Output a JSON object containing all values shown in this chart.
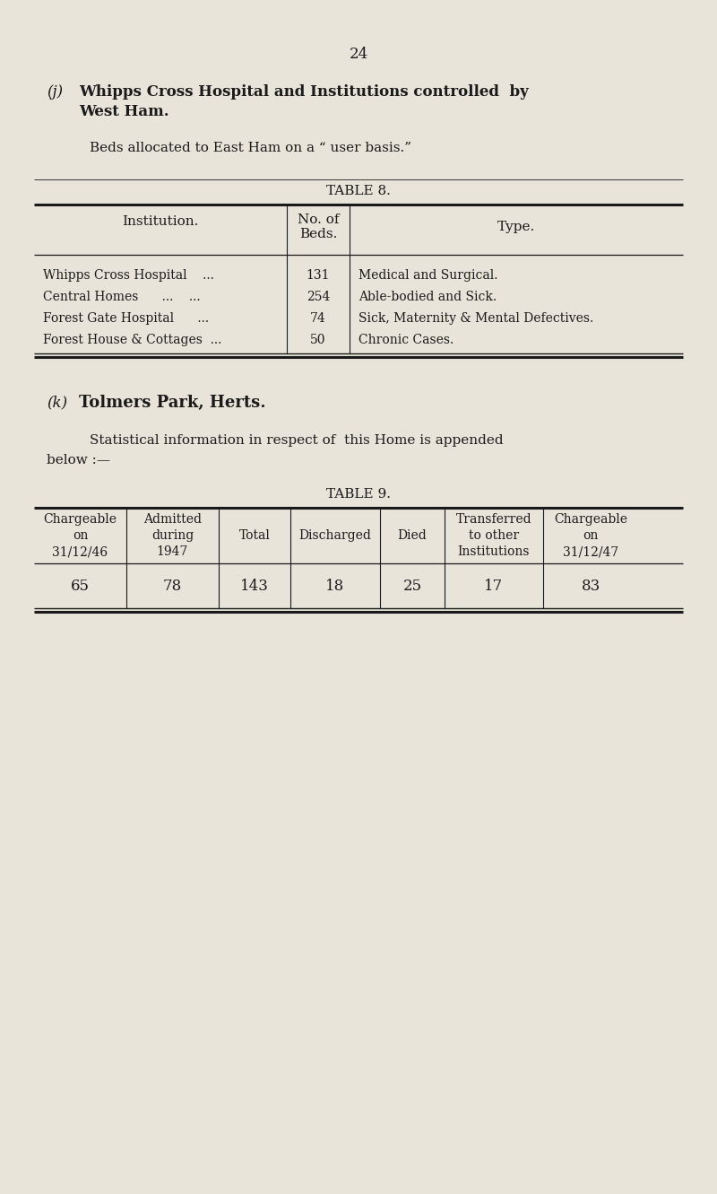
{
  "bg_color": "#e8e4da",
  "text_color": "#1a1a1a",
  "page_number": "24",
  "table8_title": "TABLE 8.",
  "table8_rows": [
    [
      "Whipps Cross Hospital    ...",
      "131",
      "Medical and Surgical."
    ],
    [
      "Central Homes      ...    ...",
      "254",
      "Able-bodied and Sick."
    ],
    [
      "Forest Gate Hospital      ...",
      "74",
      "Sick, Maternity & Mental Defectives."
    ],
    [
      "Forest House & Cottages  ...",
      "50",
      "Chronic Cases."
    ]
  ],
  "table9_title": "TABLE 9.",
  "table9_headers": [
    "Chargeable\non\n31/12/46",
    "Admitted\nduring\n1947",
    "Total",
    "Discharged",
    "Died",
    "Transferred\nto other\nInstitutions",
    "Chargeable\non\n31/12/47"
  ],
  "table9_row": [
    "65",
    "78",
    "143",
    "18",
    "25",
    "17",
    "83"
  ]
}
